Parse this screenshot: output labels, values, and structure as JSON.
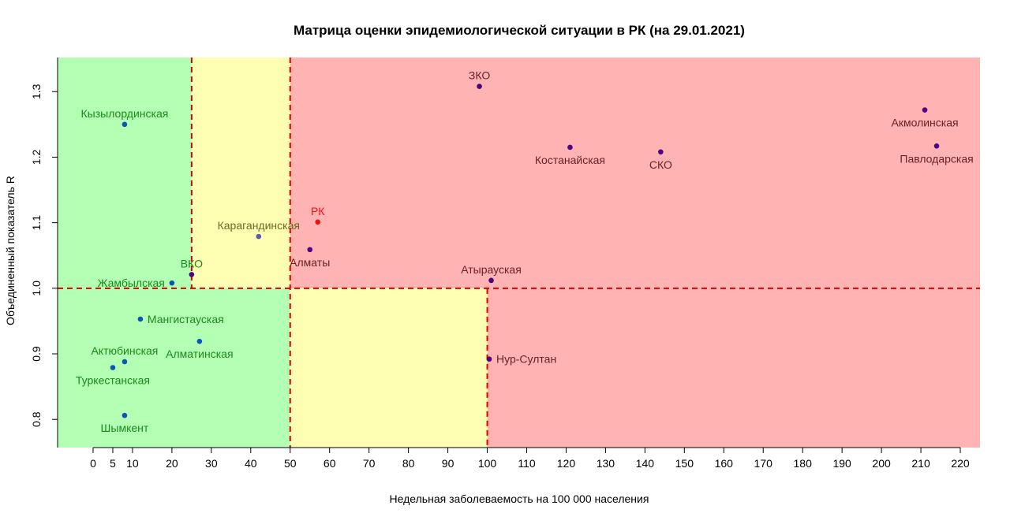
{
  "chart_data": {
    "type": "scatter",
    "title": "Матрица оценки эпидемиологической ситуации в РК (на 29.01.2021)",
    "xlabel": "Недельная заболеваемость на 100 000 населения",
    "ylabel": "Объединенный показатель R",
    "xlim": [
      -9,
      225
    ],
    "ylim": [
      0.757,
      1.352
    ],
    "x_ticks": [
      0,
      5,
      10,
      20,
      30,
      40,
      50,
      60,
      70,
      80,
      90,
      100,
      110,
      120,
      130,
      140,
      150,
      160,
      170,
      180,
      190,
      200,
      210,
      220
    ],
    "y_ticks": [
      0.8,
      0.9,
      1.0,
      1.1,
      1.2,
      1.3
    ],
    "y_tick_labels": [
      "0.8",
      "0.9",
      "1.0",
      "1.1",
      "1.2",
      "1.3"
    ],
    "zones": [
      {
        "x0": -9,
        "x1": 25,
        "y0": 1.0,
        "y1": 1.352,
        "color": "#b3ffb3"
      },
      {
        "x0": 25,
        "x1": 50,
        "y0": 1.0,
        "y1": 1.352,
        "color": "#ffffb3"
      },
      {
        "x0": 50,
        "x1": 225,
        "y0": 1.0,
        "y1": 1.352,
        "color": "#ffb3b3"
      },
      {
        "x0": -9,
        "x1": 50,
        "y0": 0.757,
        "y1": 1.0,
        "color": "#b3ffb3"
      },
      {
        "x0": 50,
        "x1": 100,
        "y0": 0.757,
        "y1": 1.0,
        "color": "#ffffb3"
      },
      {
        "x0": 100,
        "x1": 225,
        "y0": 0.757,
        "y1": 1.0,
        "color": "#ffb3b3"
      }
    ],
    "reference_lines": [
      {
        "orientation": "vertical",
        "x": 25,
        "y0": 1.0,
        "y1": 1.352
      },
      {
        "orientation": "vertical",
        "x": 50,
        "y0": 0.757,
        "y1": 1.352
      },
      {
        "orientation": "vertical",
        "x": 100,
        "y0": 0.757,
        "y1": 1.0
      },
      {
        "orientation": "horizontal",
        "y": 1.0,
        "x0": -9,
        "x1": 225
      }
    ],
    "reference_line_color": "#dd0000",
    "label_colors": {
      "green": "#1a8a1a",
      "yellow": "#6b6b1f",
      "red": "#6b1f1f",
      "highlight": "#ee1111"
    },
    "points": [
      {
        "label": "ЗКО",
        "x": 98,
        "y": 1.308,
        "color": "#4b0082",
        "label_color": "red",
        "anchor": "above"
      },
      {
        "label": "Акмолинская",
        "x": 211,
        "y": 1.272,
        "color": "#4b0082",
        "label_color": "red",
        "anchor": "below"
      },
      {
        "label": "Кызылординская",
        "x": 8,
        "y": 1.25,
        "color": "#0b57b6",
        "label_color": "green",
        "anchor": "above"
      },
      {
        "label": "Павлодарская",
        "x": 214,
        "y": 1.217,
        "color": "#4b0082",
        "label_color": "red",
        "anchor": "below"
      },
      {
        "label": "Костанайская",
        "x": 121,
        "y": 1.215,
        "color": "#4b0082",
        "label_color": "red",
        "anchor": "below"
      },
      {
        "label": "СКО",
        "x": 144,
        "y": 1.208,
        "color": "#4b0082",
        "label_color": "red",
        "anchor": "below"
      },
      {
        "label": "РК",
        "x": 57,
        "y": 1.101,
        "color": "#ee1111",
        "label_color": "highlight",
        "anchor": "above"
      },
      {
        "label": "Карагандинская",
        "x": 42,
        "y": 1.079,
        "color": "#5a5ab0",
        "label_color": "yellow",
        "anchor": "above"
      },
      {
        "label": "Алматы",
        "x": 55,
        "y": 1.059,
        "color": "#4b0082",
        "label_color": "red",
        "anchor": "below"
      },
      {
        "label": "ВКО",
        "x": 25,
        "y": 1.021,
        "color": "#4b0082",
        "label_color": "green",
        "anchor": "above"
      },
      {
        "label": "Атырауская",
        "x": 101,
        "y": 1.012,
        "color": "#4b0082",
        "label_color": "red",
        "anchor": "above"
      },
      {
        "label": "Жамбылская",
        "x": 20,
        "y": 1.008,
        "color": "#0b57b6",
        "label_color": "green",
        "anchor": "left"
      },
      {
        "label": "Мангистауская",
        "x": 12,
        "y": 0.953,
        "color": "#0b57b6",
        "label_color": "green",
        "anchor": "right"
      },
      {
        "label": "Алматинская",
        "x": 27,
        "y": 0.919,
        "color": "#0b57b6",
        "label_color": "green",
        "anchor": "below"
      },
      {
        "label": "Актюбинская",
        "x": 8,
        "y": 0.888,
        "color": "#0b57b6",
        "label_color": "green",
        "anchor": "above"
      },
      {
        "label": "Нур-Султан",
        "x": 100.5,
        "y": 0.892,
        "color": "#4b0082",
        "label_color": "red",
        "anchor": "right"
      },
      {
        "label": "Туркестанская",
        "x": 5,
        "y": 0.879,
        "color": "#0b57b6",
        "label_color": "green",
        "anchor": "below"
      },
      {
        "label": "Шымкент",
        "x": 8,
        "y": 0.806,
        "color": "#0b57b6",
        "label_color": "green",
        "anchor": "below"
      }
    ],
    "grid": false,
    "legend": "none"
  }
}
